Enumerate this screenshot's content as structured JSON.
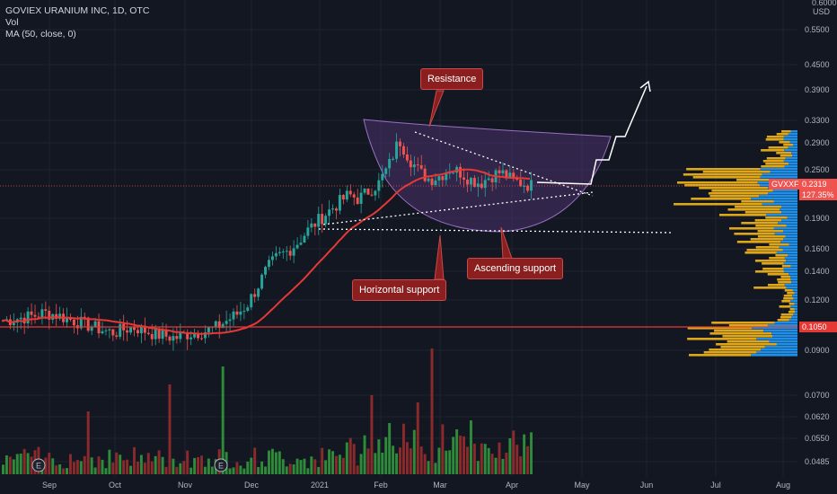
{
  "legend": {
    "title": "GOVIEX URANIUM INC, 1D, OTC",
    "vol": "Vol",
    "ma": "MA (50, close, 0)"
  },
  "callouts": {
    "resistance": "Resistance",
    "horizontal_support": "Horizontal support",
    "ascending_support": "Ascending support"
  },
  "price_axis": {
    "currency_top": "0.6000",
    "currency": "USD",
    "ticks": [
      "0.5500",
      "0.4500",
      "0.3900",
      "0.3300",
      "0.2900",
      "0.2500",
      "0.1900",
      "0.1600",
      "0.1400",
      "0.1200",
      "0.0900",
      "0.0700",
      "0.0620",
      "0.0550",
      "0.0485"
    ]
  },
  "time_axis": {
    "ticks": [
      "Sep",
      "Oct",
      "Nov",
      "Dec",
      "2021",
      "Feb",
      "Mar",
      "Apr",
      "May",
      "Jun",
      "Jul",
      "Aug"
    ]
  },
  "price_tags": {
    "symbol": "GVXXF",
    "last": "0.2319",
    "change": "127.35%",
    "level": "0.1050"
  },
  "earnings_marker": "E",
  "colors": {
    "up": "#26a69a",
    "down": "#ef5350",
    "ma": "#e53935",
    "vol_up": "#2e8b3a",
    "vol_down": "#8b2a2a",
    "profile_blue": "#2196f3",
    "profile_yellow": "#f5b71b",
    "bowl": "#7b4fa0",
    "callout_bg": "#8b1e1e"
  },
  "chart_data": {
    "type": "candlestick",
    "title": "GOVIEX URANIUM INC, 1D, OTC",
    "x_ticks": [
      "Sep",
      "Oct",
      "Nov",
      "Dec",
      "2021",
      "Feb",
      "Mar",
      "Apr",
      "May",
      "Jun",
      "Jul",
      "Aug"
    ],
    "y_ticks": [
      0.55,
      0.45,
      0.39,
      0.33,
      0.29,
      0.25,
      0.19,
      0.16,
      0.14,
      0.12,
      0.09
    ],
    "ylim": [
      0.085,
      0.62
    ],
    "y_scale": "log",
    "last_price": 0.2319,
    "change_pct": 127.35,
    "horizontal_level": 0.105,
    "close_series": [
      0.108,
      0.109,
      0.11,
      0.111,
      0.113,
      0.112,
      0.11,
      0.108,
      0.106,
      0.104,
      0.102,
      0.101,
      0.103,
      0.104,
      0.102,
      0.1,
      0.099,
      0.098,
      0.1,
      0.101,
      0.102,
      0.104,
      0.108,
      0.112,
      0.118,
      0.13,
      0.145,
      0.155,
      0.16,
      0.168,
      0.18,
      0.19,
      0.2,
      0.21,
      0.22,
      0.215,
      0.225,
      0.235,
      0.26,
      0.3,
      0.27,
      0.25,
      0.24,
      0.245,
      0.255,
      0.25,
      0.24,
      0.235,
      0.245,
      0.25,
      0.24,
      0.235,
      0.232
    ]
  }
}
